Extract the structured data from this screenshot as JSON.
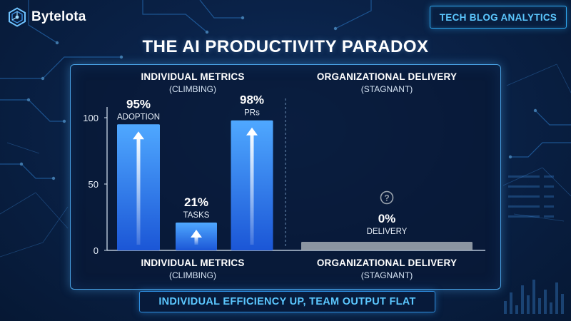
{
  "brand": {
    "name": "Bytelota",
    "icon": "hexagon-circuit-icon"
  },
  "tag": "TECH BLOG ANALYTICS",
  "title": "THE AI PRODUCTIVITY PARADOX",
  "panel": {
    "left_header": {
      "title": "INDIVIDUAL METRICS",
      "subtitle": "(CLIMBING)"
    },
    "right_header": {
      "title": "ORGANIZATIONAL DELIVERY",
      "subtitle": "(STAGNANT)"
    },
    "left_footer": {
      "title": "INDIVIDUAL METRICS",
      "subtitle": "(CLIMBING)"
    },
    "right_footer": {
      "title": "ORGANIZATIONAL DELIVERY",
      "subtitle": "(STAGNANT)"
    }
  },
  "banner": "INDIVIDUAL EFFICIENCY UP, TEAM OUTPUT FLAT",
  "colors": {
    "bar_top": "#4fa8ff",
    "bar_bottom": "#1b56d6",
    "delivery_bar": "#9aa3ad",
    "accent": "#5cc8ff"
  },
  "chart_data": {
    "type": "bar",
    "ylim": [
      0,
      100
    ],
    "yticks": [
      0,
      50,
      100
    ],
    "grid": false,
    "categories": [
      "ADOPTION",
      "TASKS",
      "PRs",
      "DELIVERY"
    ],
    "values": [
      95,
      21,
      98,
      0
    ],
    "value_labels": [
      "95%",
      "21%",
      "98%",
      "0%"
    ],
    "series_group": [
      "individual",
      "individual",
      "individual",
      "organizational"
    ],
    "annotations": [
      {
        "category": "DELIVERY",
        "symbol": "?"
      }
    ]
  }
}
